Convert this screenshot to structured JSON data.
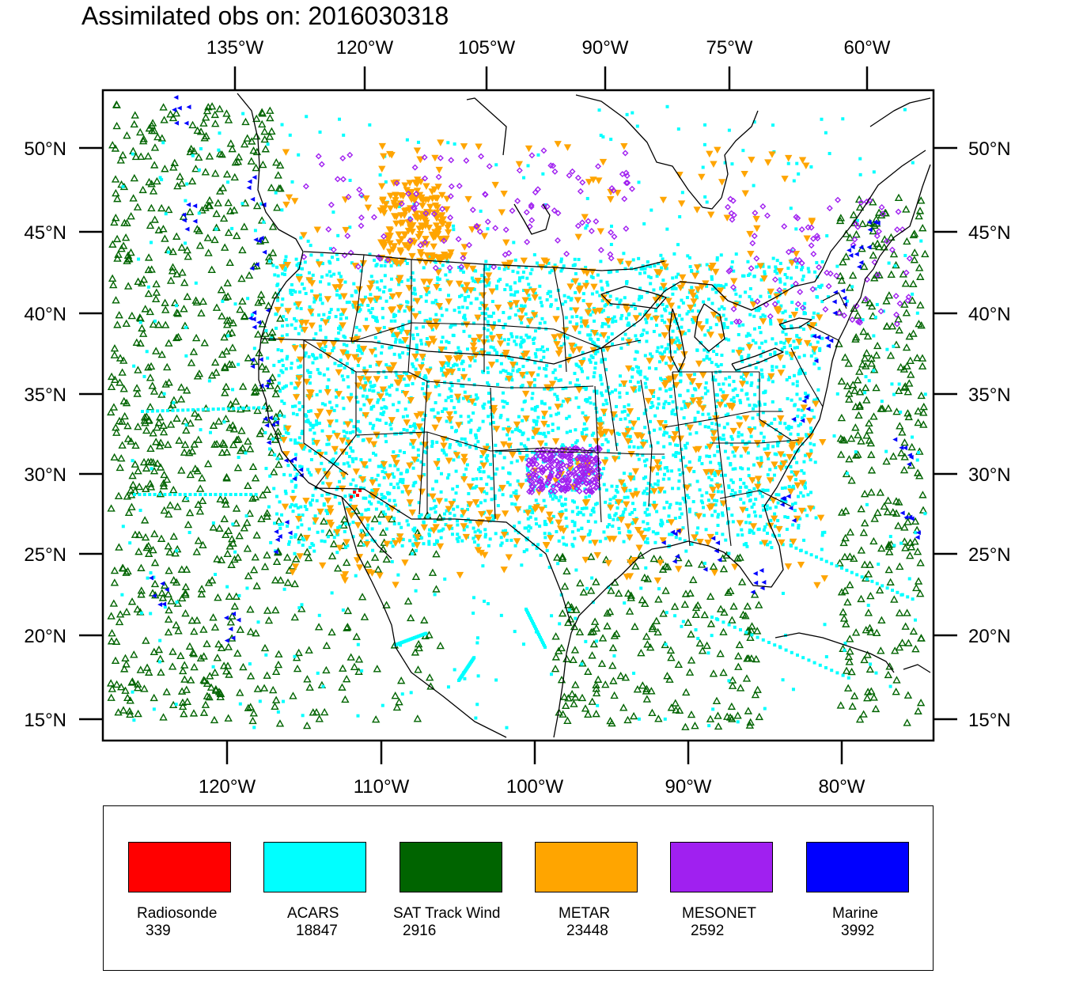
{
  "title": "Assimilated obs on: 2016030318",
  "colors": {
    "radiosonde": "#ff0000",
    "acars": "#00ffff",
    "sat_track_wind": "#006400",
    "metar": "#ffa500",
    "mesonet": "#a020f0",
    "marine": "#0000ff"
  },
  "top_lon_labels": [
    "135°W",
    "120°W",
    "105°W",
    "90°W",
    "75°W",
    "60°W"
  ],
  "bottom_lon_labels": [
    "120°W",
    "110°W",
    "100°W",
    "90°W",
    "80°W"
  ],
  "lat_labels": [
    "50°N",
    "45°N",
    "40°N",
    "35°N",
    "30°N",
    "25°N",
    "20°N",
    "15°N"
  ],
  "legend": [
    {
      "name": "Radiosonde",
      "count": "339",
      "color": "#ff0000"
    },
    {
      "name": "ACARS",
      "count": "18847",
      "color": "#00ffff"
    },
    {
      "name": "SAT Track Wind",
      "count": "2916",
      "color": "#006400"
    },
    {
      "name": "METAR",
      "count": "23448",
      "color": "#ffa500"
    },
    {
      "name": "MESONET",
      "count": "2592",
      "color": "#a020f0"
    },
    {
      "name": "Marine",
      "count": "3992",
      "color": "#0000ff"
    }
  ]
}
